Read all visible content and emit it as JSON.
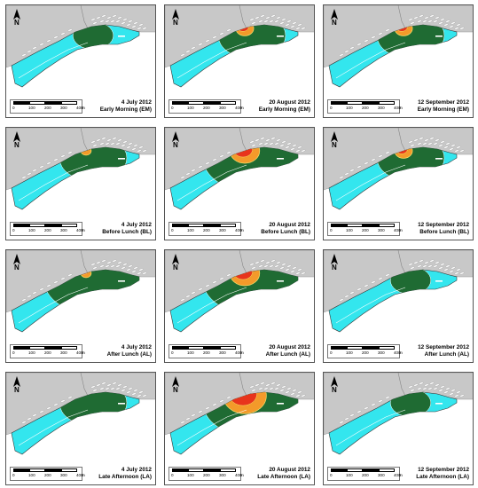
{
  "figure": {
    "panels": [
      {
        "date": "4 July 2012",
        "period": "Early Morning (EM)",
        "zones": [
          {
            "level": "green",
            "extent": "small"
          }
        ]
      },
      {
        "date": "20 August 2012",
        "period": "Early Morning (EM)",
        "zones": [
          {
            "level": "green",
            "extent": "medium"
          },
          {
            "level": "orange",
            "extent": "small"
          },
          {
            "level": "red",
            "extent": "small"
          }
        ]
      },
      {
        "date": "12 September 2012",
        "period": "Early Morning (EM)",
        "zones": [
          {
            "level": "green",
            "extent": "medium"
          },
          {
            "level": "orange",
            "extent": "small"
          },
          {
            "level": "red",
            "extent": "small"
          }
        ]
      },
      {
        "date": "4 July 2012",
        "period": "Before Lunch (BL)",
        "zones": [
          {
            "level": "green",
            "extent": "medium"
          },
          {
            "level": "orange",
            "extent": "tiny"
          }
        ]
      },
      {
        "date": "20 August 2012",
        "period": "Before Lunch (BL)",
        "zones": [
          {
            "level": "green",
            "extent": "large"
          },
          {
            "level": "orange",
            "extent": "medium"
          },
          {
            "level": "red",
            "extent": "medium"
          }
        ]
      },
      {
        "date": "12 September 2012",
        "period": "Before Lunch (BL)",
        "zones": [
          {
            "level": "green",
            "extent": "medium"
          },
          {
            "level": "orange",
            "extent": "small"
          },
          {
            "level": "red",
            "extent": "small"
          }
        ]
      },
      {
        "date": "4 July 2012",
        "period": "After Lunch (AL)",
        "zones": [
          {
            "level": "green",
            "extent": "large"
          },
          {
            "level": "orange",
            "extent": "tiny"
          },
          {
            "level": "red",
            "extent": "tiny"
          }
        ]
      },
      {
        "date": "20 August 2012",
        "period": "After Lunch (AL)",
        "zones": [
          {
            "level": "green",
            "extent": "large"
          },
          {
            "level": "orange",
            "extent": "medium"
          },
          {
            "level": "red",
            "extent": "medium"
          }
        ]
      },
      {
        "date": "12 September 2012",
        "period": "After Lunch (AL)",
        "zones": [
          {
            "level": "green",
            "extent": "small"
          }
        ]
      },
      {
        "date": "4 July 2012",
        "period": "Late Afternoon (LA)",
        "zones": [
          {
            "level": "green",
            "extent": "medium"
          }
        ]
      },
      {
        "date": "20 August 2012",
        "period": "Late Afternoon (LA)",
        "zones": [
          {
            "level": "green",
            "extent": "large"
          },
          {
            "level": "orange",
            "extent": "large"
          },
          {
            "level": "red",
            "extent": "large"
          }
        ]
      },
      {
        "date": "12 September 2012",
        "period": "Late Afternoon (LA)",
        "zones": [
          {
            "level": "green",
            "extent": "small"
          }
        ]
      }
    ],
    "north_label": "N",
    "scale_labels": [
      "0",
      "100",
      "200",
      "300",
      "400"
    ],
    "scale_unit": "m",
    "colors": {
      "water": "#33e6ee",
      "land": "#c8c8c8",
      "green": "#1f6b33",
      "orange": "#f39a2a",
      "red": "#e8341c",
      "yellow": "#f3e06a",
      "outline": "#333333"
    }
  }
}
